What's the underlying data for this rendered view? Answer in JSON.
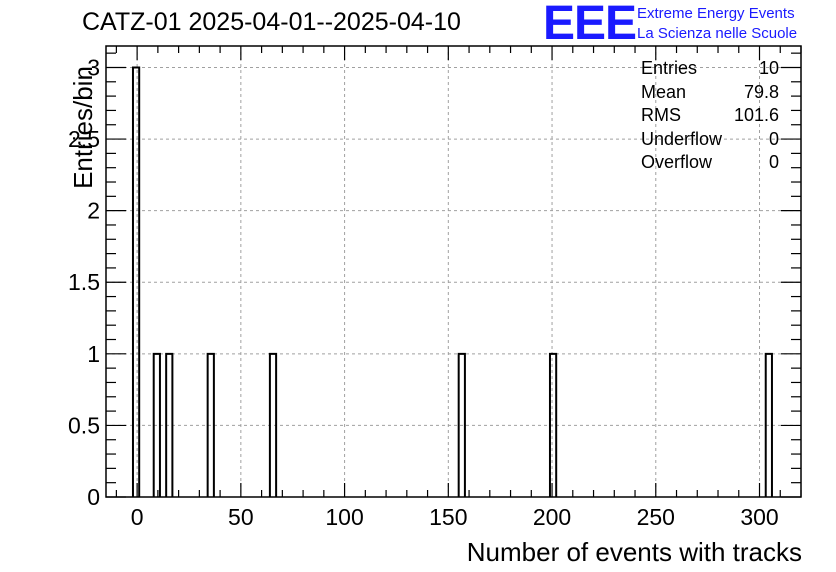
{
  "header": {
    "title": "CATZ-01 2025-04-01--2025-04-10"
  },
  "logo": {
    "mark": "EEE",
    "line1": "Extreme Energy Events",
    "line2": "La Scienza nelle Scuole",
    "color": "#1a1aff"
  },
  "stats": [
    {
      "label": "Entries",
      "value": "10"
    },
    {
      "label": "Mean",
      "value": "79.8"
    },
    {
      "label": "RMS",
      "value": "101.6"
    },
    {
      "label": "Underflow",
      "value": "0"
    },
    {
      "label": "Overflow",
      "value": "0"
    }
  ],
  "chart_data": {
    "type": "bar",
    "xlabel": "Number of events with tracks",
    "ylabel": "Entries/bin",
    "xlim": [
      -15,
      320
    ],
    "ylim": [
      0,
      3.15
    ],
    "grid": true,
    "bin_width": 3,
    "x_ticks": [
      0,
      50,
      100,
      150,
      200,
      250,
      300
    ],
    "y_ticks": [
      0,
      0.5,
      1,
      1.5,
      2,
      2.5,
      3
    ],
    "x_tick_labels": [
      "0",
      "50",
      "100",
      "150",
      "200",
      "250",
      "300"
    ],
    "y_tick_labels": [
      "0",
      "0.5",
      "1",
      "1.5",
      "2",
      "2.5",
      "3"
    ],
    "bins": [
      {
        "start": -2,
        "value": 3
      },
      {
        "start": 8,
        "value": 1
      },
      {
        "start": 14,
        "value": 1
      },
      {
        "start": 34,
        "value": 1
      },
      {
        "start": 64,
        "value": 1
      },
      {
        "start": 155,
        "value": 1
      },
      {
        "start": 199,
        "value": 1
      },
      {
        "start": 303,
        "value": 1
      }
    ]
  }
}
